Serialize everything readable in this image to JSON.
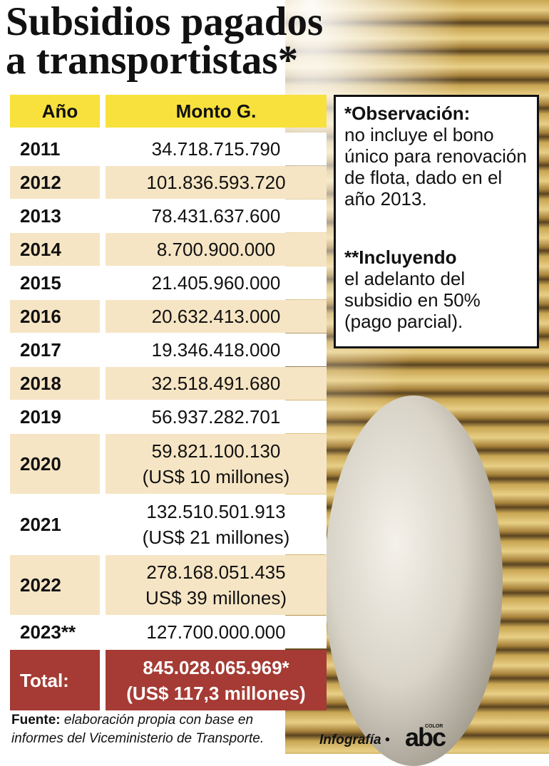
{
  "header": {
    "title_lines": [
      "Subsidios pagados",
      "a transportistas*"
    ]
  },
  "table": {
    "columns": [
      "Año",
      "Monto G."
    ],
    "rows": [
      {
        "year": "2011",
        "amount": [
          "34.718.715.790"
        ]
      },
      {
        "year": "2012",
        "amount": [
          "101.836.593.720"
        ]
      },
      {
        "year": "2013",
        "amount": [
          "78.431.637.600"
        ]
      },
      {
        "year": "2014",
        "amount": [
          "8.700.900.000"
        ]
      },
      {
        "year": "2015",
        "amount": [
          "21.405.960.000"
        ]
      },
      {
        "year": "2016",
        "amount": [
          "20.632.413.000"
        ]
      },
      {
        "year": "2017",
        "amount": [
          "19.346.418.000"
        ]
      },
      {
        "year": "2018",
        "amount": [
          "32.518.491.680"
        ]
      },
      {
        "year": "2019",
        "amount": [
          "56.937.282.701"
        ]
      },
      {
        "year": "2020",
        "amount": [
          "59.821.100.130",
          "(US$ 10 millones)"
        ]
      },
      {
        "year": "2021",
        "amount": [
          "132.510.501.913",
          "(US$ 21 millones)"
        ]
      },
      {
        "year": "2022",
        "amount": [
          "278.168.051.435",
          "US$ 39 millones)"
        ]
      },
      {
        "year": "2023**",
        "amount": [
          "127.700.000.000"
        ]
      }
    ],
    "total": {
      "label": "Total:",
      "amount": [
        "845.028.065.969*",
        "(US$ 117,3 millones)"
      ]
    }
  },
  "notes": [
    {
      "heading": "*Observación:",
      "text": "no incluye el bono único para renovación de flota, dado en el año 2013."
    },
    {
      "heading": "**Incluyendo",
      "text": "el adelanto del subsidio en 50% (pago parcial)."
    }
  ],
  "footer": {
    "source_label": "Fuente:",
    "source_text": "elaboración propia con base en informes del Viceministerio de Transporte.",
    "credit": "Infografía",
    "logo": "abc",
    "logo_small": "COLOR"
  }
}
